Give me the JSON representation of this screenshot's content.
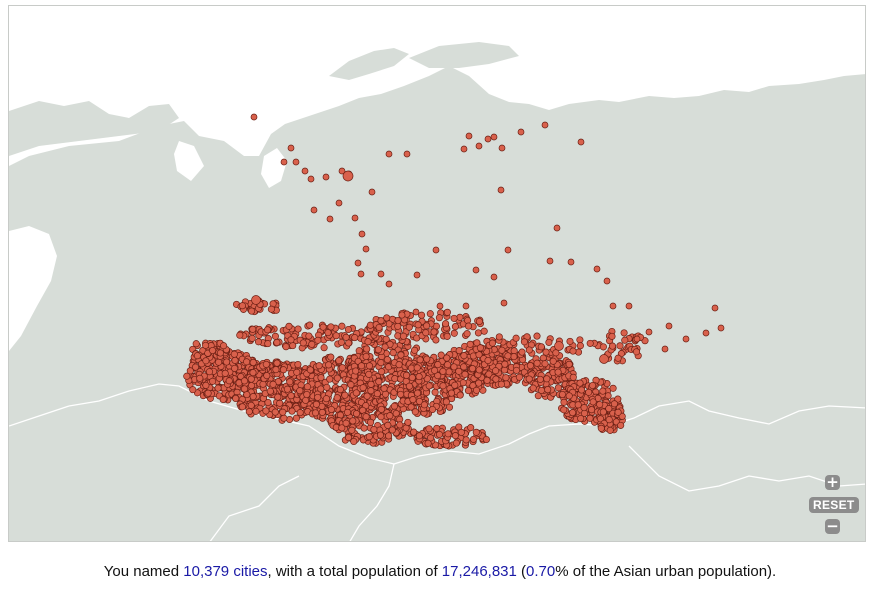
{
  "map": {
    "colors": {
      "water": "#ffffff",
      "land": "#d7ddd8",
      "border": "#ffffff",
      "marker_fill": "#d9614c",
      "marker_stroke": "#6b1f14"
    },
    "marker_count_note": "dense cluster of named cities across southern Siberia"
  },
  "controls": {
    "zoom_in_label": "+",
    "reset_label": "RESET",
    "zoom_out_label": "−",
    "zoom_in_icon": "plus-icon",
    "zoom_out_icon": "minus-icon"
  },
  "summary": {
    "prefix": "You named ",
    "cities_count": "10,379",
    "cities_link_suffix": " cities",
    "middle": ", with a total population of ",
    "population": "17,246,831",
    "paren_open": " (",
    "percent": "0.70",
    "suffix": "% of the Asian urban population)."
  }
}
